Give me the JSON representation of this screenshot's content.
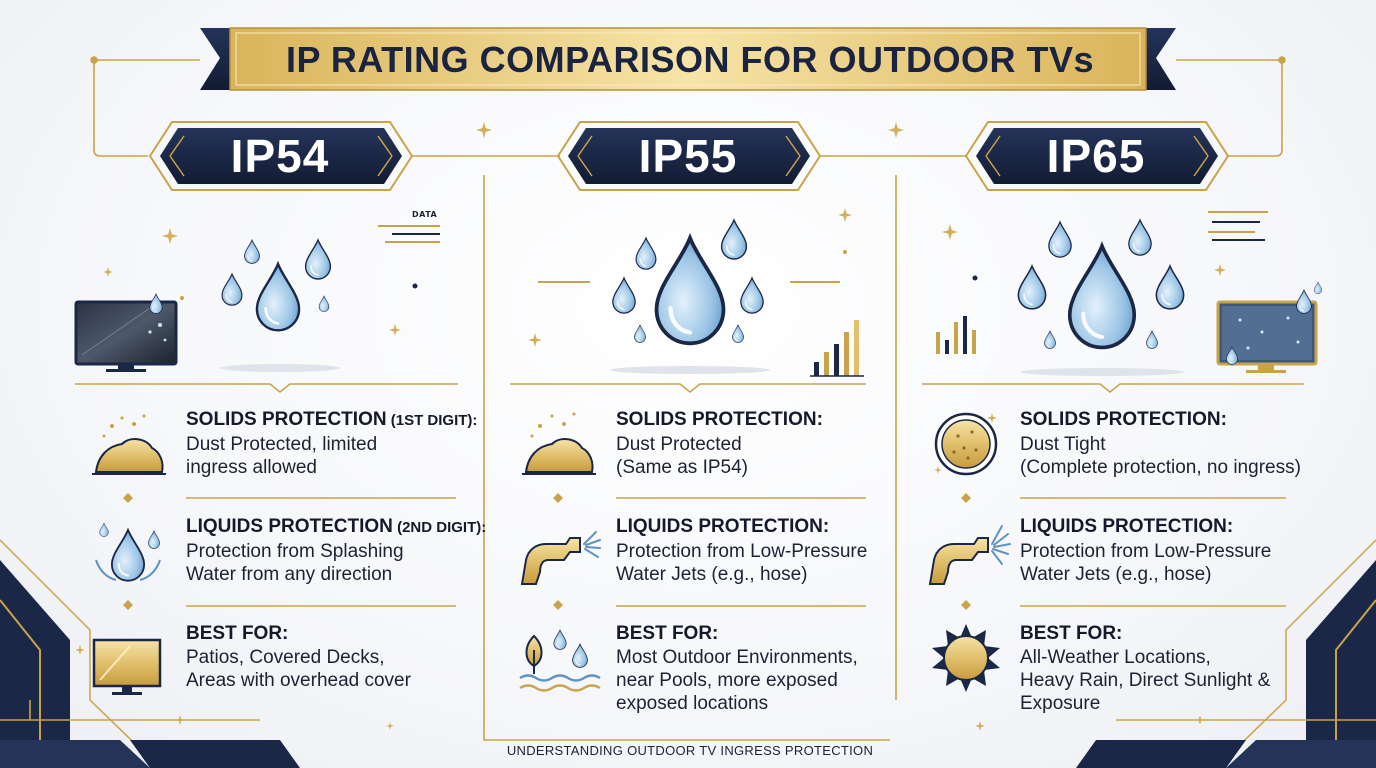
{
  "title": "IP RATING COMPARISON FOR OUTDOOR TVs",
  "footer": "UNDERSTANDING OUTDOOR TV INGRESS PROTECTION",
  "data_tag": "DATA",
  "colors": {
    "navy": "#1b2747",
    "gold": "#c9a34a",
    "water": "#8fbde0"
  },
  "columns": [
    {
      "rating": "IP54",
      "solids": {
        "heading": "SOLIDS PROTECTION",
        "note": " (1ST DIGIT):",
        "line1": "Dust Protected, limited",
        "line2": "ingress allowed"
      },
      "liquids": {
        "heading": "LIQUIDS PROTECTION",
        "note": " (2ND DIGIT):",
        "line1": "Protection from Splashing",
        "line2": "Water from any direction"
      },
      "best": {
        "heading": "BEST FOR:",
        "line1": "Patios, Covered Decks,",
        "line2": "Areas with overhead cover",
        "line3": ""
      },
      "icons": {
        "solids": "dust-pile-icon",
        "liquids": "splash-drop-icon",
        "best": "covered-tv-icon"
      }
    },
    {
      "rating": "IP55",
      "solids": {
        "heading": "SOLIDS PROTECTION:",
        "note": "",
        "line1": "Dust Protected",
        "line2": "(Same as IP54)"
      },
      "liquids": {
        "heading": "LIQUIDS PROTECTION:",
        "note": "",
        "line1": "Protection from Low-Pressure",
        "line2": "Water Jets (e.g., hose)"
      },
      "best": {
        "heading": "BEST FOR:",
        "line1": "Most Outdoor Environments,",
        "line2": "near Pools, more exposed",
        "line3": "exposed locations"
      },
      "icons": {
        "solids": "dust-pile-icon",
        "liquids": "hose-nozzle-icon",
        "best": "pool-outdoor-icon"
      }
    },
    {
      "rating": "IP65",
      "solids": {
        "heading": "SOLIDS PROTECTION:",
        "note": "",
        "line1": "Dust Tight",
        "line2": "(Complete protection, no ingress)"
      },
      "liquids": {
        "heading": "LIQUIDS PROTECTION:",
        "note": "",
        "line1": "Protection from Low-Pressure",
        "line2": "Water Jets (e.g., hose)"
      },
      "best": {
        "heading": "BEST FOR:",
        "line1": "All-Weather Locations,",
        "line2": "Heavy Rain, Direct Sunlight &",
        "line3": "Exposure"
      },
      "icons": {
        "solids": "sealed-disc-icon",
        "liquids": "hose-nozzle-icon",
        "best": "sun-icon"
      }
    }
  ]
}
